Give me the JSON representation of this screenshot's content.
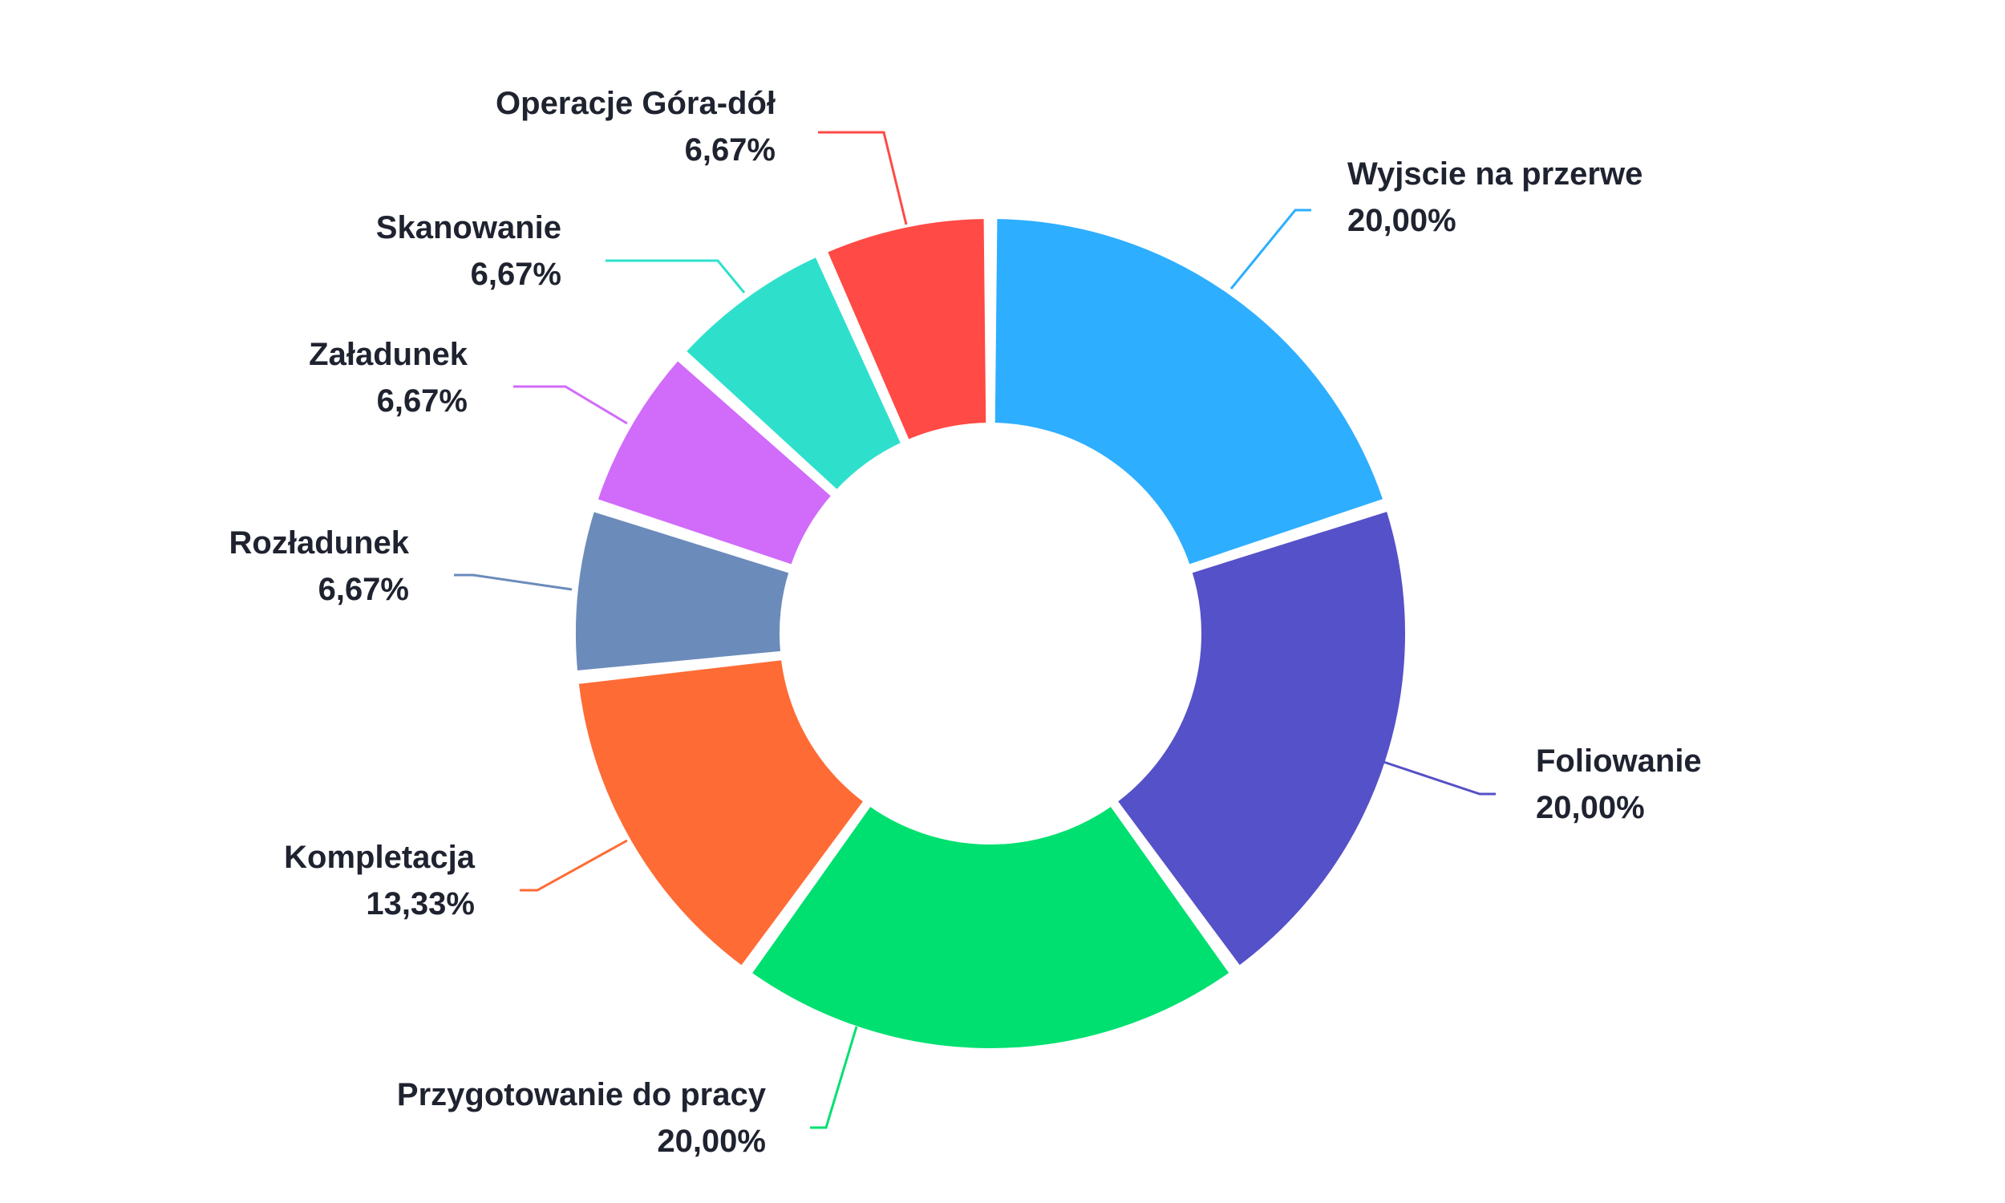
{
  "chart_data": {
    "type": "pie",
    "donut": true,
    "categories": [
      "Wyjscie na przerwe",
      "Foliowanie",
      "Przygotowanie do pracy",
      "Kompletacja",
      "Rozładunek",
      "Załadunek",
      "Skanowanie",
      "Operacje Góra-dół"
    ],
    "values": [
      20.0,
      20.0,
      20.0,
      13.33,
      6.67,
      6.67,
      6.67,
      6.67
    ],
    "value_labels": [
      "20,00%",
      "20,00%",
      "20,00%",
      "13,33%",
      "6,67%",
      "6,67%",
      "6,67%",
      "6,67%"
    ],
    "colors": [
      "#2EAEFF",
      "#5551C8",
      "#00E070",
      "#FF6B35",
      "#6B8BBB",
      "#D16BFA",
      "#2EE0CC",
      "#FF4A45"
    ],
    "legend": "none"
  }
}
